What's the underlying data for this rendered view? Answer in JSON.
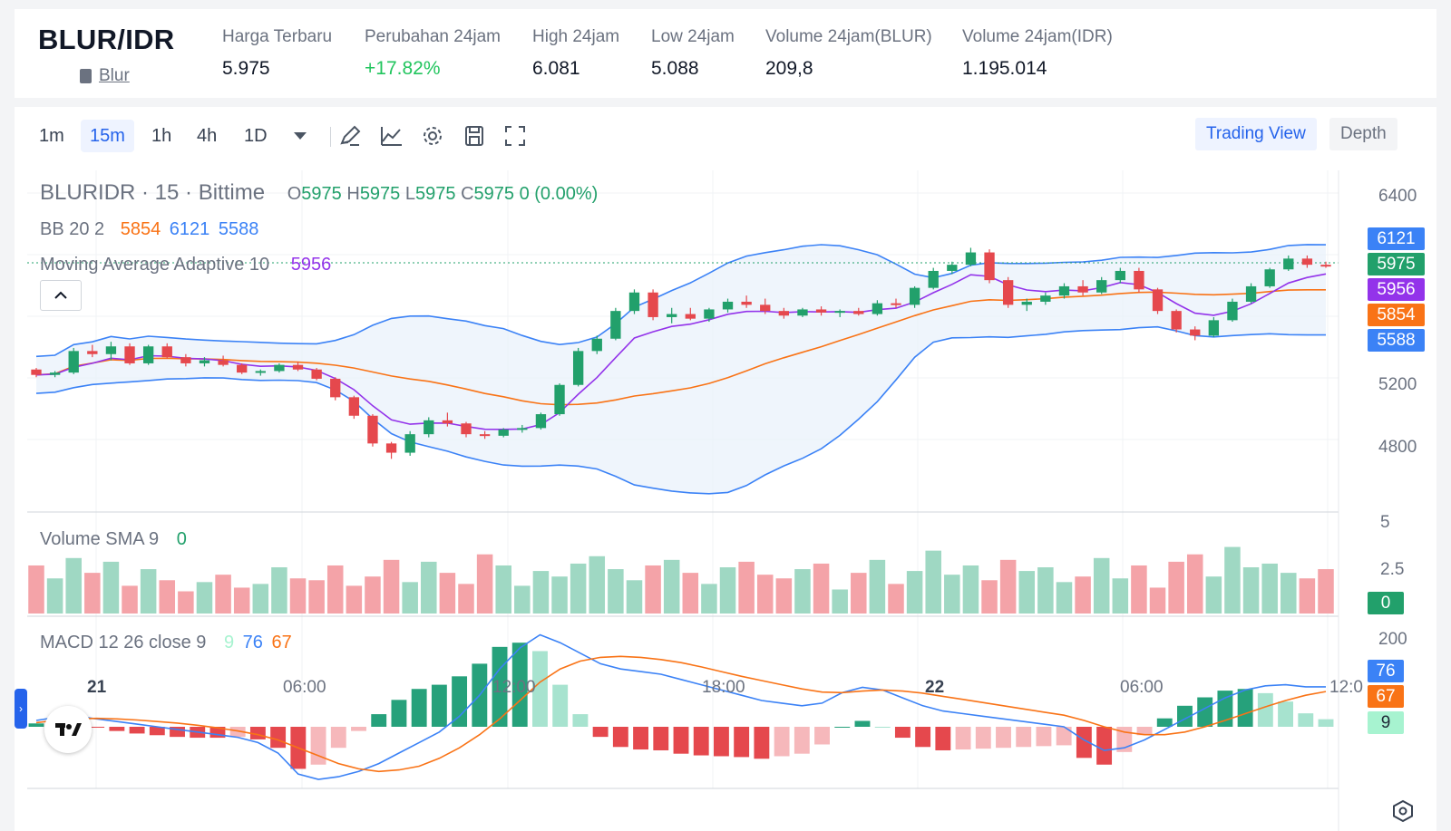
{
  "header": {
    "pair": "BLUR/IDR",
    "coin_link": "Blur",
    "stats": [
      {
        "label": "Harga Terbaru",
        "value": "5.975",
        "trend": "neutral"
      },
      {
        "label": "Perubahan 24jam",
        "value": "+17.82%",
        "trend": "up"
      },
      {
        "label": "High 24jam",
        "value": "6.081",
        "trend": "neutral"
      },
      {
        "label": "Low 24jam",
        "value": "5.088",
        "trend": "neutral"
      },
      {
        "label": "Volume 24jam(BLUR)",
        "value": "209,8",
        "trend": "neutral"
      },
      {
        "label": "Volume 24jam(IDR)",
        "value": "1.195.014",
        "trend": "neutral"
      }
    ]
  },
  "toolbar": {
    "timeframes": [
      "1m",
      "15m",
      "1h",
      "4h",
      "1D"
    ],
    "active_timeframe": "15m",
    "tools": [
      "pencil-icon",
      "indicator-icon",
      "gear-icon",
      "save-icon",
      "fullscreen-icon"
    ],
    "view_trading": "Trading View",
    "view_depth": "Depth"
  },
  "legend": {
    "symbol": "BLURIDR · 15 · Bittime",
    "o_label": "O",
    "o_value": "5975",
    "h_label": "H",
    "h_value": "5975",
    "l_label": "L",
    "l_value": "5975",
    "c_label": "C",
    "c_value": "5975",
    "change": "0 (0.00%)",
    "bb_label": "BB 20 2",
    "bb_mid": "5854",
    "bb_upper": "6121",
    "bb_lower": "5588",
    "maa_label": "Moving Average Adaptive 10",
    "maa_value": "5956",
    "vol_label": "Volume SMA 9",
    "vol_value": "0",
    "macd_label": "MACD 12 26 close 9",
    "macd_hist": "9",
    "macd_line": "76",
    "macd_signal": "67"
  },
  "price_tags": [
    {
      "value": "6121",
      "color": "#3b82f6"
    },
    {
      "value": "5975",
      "color": "#22a06b"
    },
    {
      "value": "5956",
      "color": "#9333ea"
    },
    {
      "value": "5854",
      "color": "#f97316"
    },
    {
      "value": "5588",
      "color": "#3b82f6"
    }
  ],
  "volume_tag": {
    "value": "0",
    "color": "#22a06b"
  },
  "macd_tags": [
    {
      "value": "76",
      "color": "#3b82f6"
    },
    {
      "value": "67",
      "color": "#f97316"
    },
    {
      "value": "9",
      "color": "#a7f3d0"
    }
  ],
  "axes": {
    "price_ticks": [
      "6400",
      "5200",
      "4800"
    ],
    "volume_ticks": [
      "5",
      "2.5"
    ],
    "macd_ticks": [
      "200"
    ],
    "time_ticks": [
      "21",
      "06:00",
      "12:00",
      "18:00",
      "22",
      "06:00",
      "12:0"
    ]
  },
  "colors": {
    "up": "#22a06b",
    "down": "#e5484d",
    "bb": "#3b82f6",
    "mid": "#f97316",
    "maa": "#9333ea"
  },
  "chart_data": {
    "type": "candlestick",
    "title": "BLURIDR · 15 · Bittime",
    "ylim": [
      4500,
      6500
    ],
    "x_ticks": [
      "21",
      "06:00",
      "12:00",
      "18:00",
      "22",
      "06:00",
      "12:0"
    ],
    "candles": [
      [
        5300,
        5310,
        5250,
        5265
      ],
      [
        5265,
        5290,
        5250,
        5280
      ],
      [
        5280,
        5440,
        5270,
        5420
      ],
      [
        5420,
        5460,
        5380,
        5400
      ],
      [
        5400,
        5480,
        5360,
        5450
      ],
      [
        5450,
        5470,
        5330,
        5340
      ],
      [
        5340,
        5460,
        5330,
        5450
      ],
      [
        5450,
        5470,
        5370,
        5380
      ],
      [
        5380,
        5400,
        5320,
        5340
      ],
      [
        5340,
        5380,
        5320,
        5360
      ],
      [
        5360,
        5390,
        5320,
        5330
      ],
      [
        5330,
        5340,
        5270,
        5280
      ],
      [
        5280,
        5300,
        5260,
        5290
      ],
      [
        5290,
        5340,
        5280,
        5330
      ],
      [
        5330,
        5350,
        5290,
        5300
      ],
      [
        5300,
        5310,
        5230,
        5240
      ],
      [
        5240,
        5250,
        5100,
        5120
      ],
      [
        5120,
        5130,
        4980,
        5000
      ],
      [
        5000,
        5010,
        4800,
        4820
      ],
      [
        4820,
        4830,
        4720,
        4760
      ],
      [
        4760,
        4900,
        4740,
        4880
      ],
      [
        4880,
        4990,
        4860,
        4970
      ],
      [
        4970,
        5020,
        4930,
        4950
      ],
      [
        4950,
        4960,
        4860,
        4880
      ],
      [
        4880,
        4900,
        4850,
        4870
      ],
      [
        4870,
        4920,
        4860,
        4910
      ],
      [
        4910,
        4940,
        4890,
        4920
      ],
      [
        4920,
        5020,
        4910,
        5010
      ],
      [
        5010,
        5210,
        5000,
        5200
      ],
      [
        5200,
        5440,
        5190,
        5420
      ],
      [
        5420,
        5520,
        5400,
        5500
      ],
      [
        5500,
        5700,
        5490,
        5680
      ],
      [
        5680,
        5820,
        5660,
        5800
      ],
      [
        5800,
        5820,
        5620,
        5640
      ],
      [
        5640,
        5700,
        5600,
        5660
      ],
      [
        5660,
        5700,
        5620,
        5630
      ],
      [
        5630,
        5700,
        5610,
        5690
      ],
      [
        5690,
        5760,
        5670,
        5740
      ],
      [
        5740,
        5780,
        5700,
        5720
      ],
      [
        5720,
        5760,
        5660,
        5680
      ],
      [
        5680,
        5700,
        5630,
        5650
      ],
      [
        5650,
        5700,
        5640,
        5690
      ],
      [
        5690,
        5710,
        5650,
        5670
      ],
      [
        5670,
        5690,
        5640,
        5680
      ],
      [
        5680,
        5700,
        5650,
        5660
      ],
      [
        5660,
        5750,
        5650,
        5730
      ],
      [
        5730,
        5760,
        5700,
        5720
      ],
      [
        5720,
        5840,
        5700,
        5830
      ],
      [
        5830,
        5960,
        5820,
        5940
      ],
      [
        5940,
        6000,
        5920,
        5980
      ],
      [
        5980,
        6090,
        5970,
        6060
      ],
      [
        6060,
        6080,
        5860,
        5880
      ],
      [
        5880,
        5900,
        5700,
        5720
      ],
      [
        5720,
        5760,
        5680,
        5740
      ],
      [
        5740,
        5800,
        5720,
        5780
      ],
      [
        5780,
        5860,
        5760,
        5840
      ],
      [
        5840,
        5880,
        5780,
        5800
      ],
      [
        5800,
        5900,
        5790,
        5880
      ],
      [
        5880,
        5960,
        5860,
        5940
      ],
      [
        5940,
        5960,
        5800,
        5820
      ],
      [
        5820,
        5830,
        5660,
        5680
      ],
      [
        5680,
        5690,
        5540,
        5560
      ],
      [
        5560,
        5580,
        5490,
        5520
      ],
      [
        5520,
        5640,
        5510,
        5620
      ],
      [
        5620,
        5760,
        5610,
        5740
      ],
      [
        5740,
        5860,
        5730,
        5840
      ],
      [
        5840,
        5960,
        5830,
        5950
      ],
      [
        5950,
        6040,
        5940,
        6020
      ],
      [
        6020,
        6040,
        5960,
        5980
      ],
      [
        5980,
        6000,
        5960,
        5975
      ]
    ],
    "volume": [
      2.6,
      1.9,
      3.0,
      2.2,
      2.8,
      1.5,
      2.4,
      1.8,
      1.2,
      1.7,
      2.1,
      1.4,
      1.6,
      2.5,
      1.9,
      1.8,
      2.6,
      1.5,
      2.0,
      2.9,
      1.7,
      2.8,
      2.2,
      1.6,
      3.2,
      2.6,
      1.5,
      2.3,
      2.0,
      2.7,
      3.1,
      2.4,
      1.8,
      2.6,
      2.9,
      2.2,
      1.6,
      2.5,
      2.8,
      2.1,
      1.9,
      2.4,
      2.7,
      1.3,
      2.2,
      2.9,
      1.6,
      2.3,
      3.4,
      2.1,
      2.6,
      1.8,
      2.9,
      2.3,
      2.5,
      1.7,
      2.0,
      3.0,
      1.9,
      2.6,
      1.4,
      2.8,
      3.2,
      2.0,
      3.6,
      2.5,
      2.7,
      2.2,
      1.9,
      2.4
    ],
    "macd": [
      12,
      18,
      20,
      15,
      10,
      5,
      0,
      -5,
      -10,
      -15,
      -20,
      -30,
      -50,
      -90,
      -100,
      -95,
      -85,
      -70,
      -50,
      -30,
      -10,
      20,
      60,
      110,
      150,
      175,
      160,
      140,
      120,
      110,
      105,
      100,
      90,
      80,
      70,
      60,
      50,
      45,
      40,
      45,
      65,
      75,
      70,
      55,
      40,
      30,
      25,
      20,
      15,
      10,
      5,
      0,
      -25,
      -45,
      -40,
      -25,
      -5,
      15,
      35,
      55,
      70,
      78,
      80,
      76,
      76
    ],
    "signal": [
      8,
      12,
      15,
      16,
      15,
      13,
      10,
      7,
      3,
      -2,
      -8,
      -15,
      -25,
      -40,
      -55,
      -70,
      -80,
      -85,
      -82,
      -75,
      -60,
      -40,
      -15,
      15,
      50,
      85,
      110,
      125,
      132,
      134,
      132,
      128,
      122,
      114,
      105,
      96,
      88,
      80,
      72,
      66,
      65,
      68,
      70,
      68,
      64,
      58,
      52,
      46,
      40,
      34,
      28,
      22,
      12,
      0,
      -10,
      -15,
      -15,
      -10,
      0,
      12,
      25,
      38,
      50,
      60,
      67
    ]
  }
}
